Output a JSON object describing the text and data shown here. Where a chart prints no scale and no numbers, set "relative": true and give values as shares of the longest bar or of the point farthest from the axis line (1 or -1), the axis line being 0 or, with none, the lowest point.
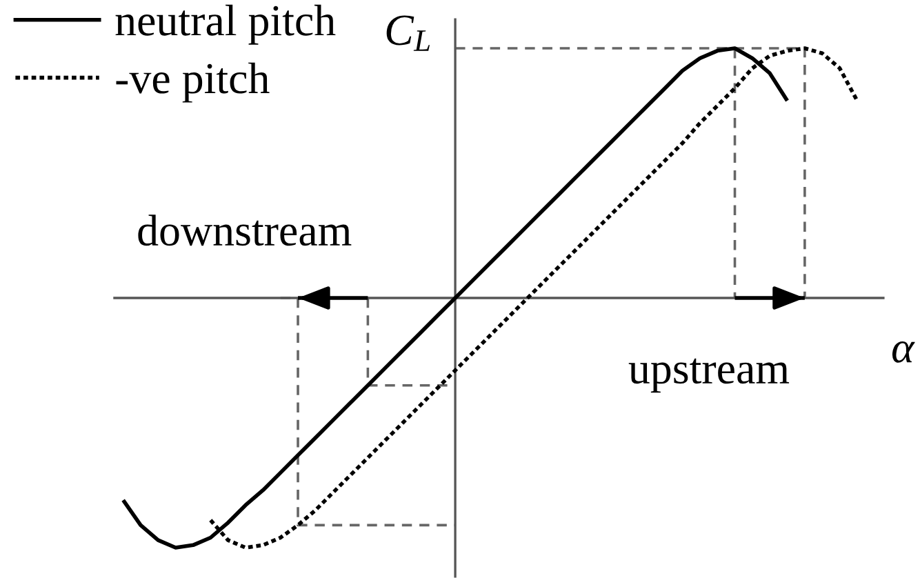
{
  "chart_data": {
    "type": "line",
    "relative": true,
    "xlabel": "α",
    "ylabel": "C$_{L}$",
    "legend": "top left",
    "categories": [
      null,
      null,
      null,
      null,
      null,
      null,
      null,
      null,
      null,
      null,
      null,
      null,
      null,
      null,
      null,
      null,
      null,
      null,
      null,
      null,
      null,
      null,
      null,
      null,
      null,
      null,
      null,
      null,
      null,
      null,
      null,
      null,
      null,
      null,
      null,
      null,
      null,
      null,
      null,
      null,
      null,
      null,
      null,
      null
    ],
    "series": [
      {
        "name": "neutral pitch",
        "color": "#000000",
        "line_style": "solid",
        "values": [
          -0.81,
          -0.91,
          -0.97,
          -1.0,
          -0.99,
          -0.96,
          -0.9,
          -0.83,
          -0.77,
          -0.7,
          -0.63,
          -0.56,
          -0.49,
          -0.42,
          -0.35,
          -0.28,
          -0.21,
          -0.14,
          -0.07,
          0,
          0.07,
          0.14,
          0.21,
          0.28,
          0.35,
          0.42,
          0.49,
          0.56,
          0.63,
          0.7,
          0.77,
          0.84,
          0.91,
          0.96,
          0.99,
          1.0,
          0.96,
          0.9,
          0.79,
          null,
          null,
          null,
          null,
          null
        ]
      },
      {
        "name": "-ve pitch",
        "color": "#000000",
        "line_style": "dotted",
        "values": [
          null,
          null,
          null,
          null,
          null,
          -0.89,
          -0.97,
          -1.0,
          -0.99,
          -0.96,
          -0.91,
          -0.85,
          -0.78,
          -0.71,
          -0.64,
          -0.57,
          -0.5,
          -0.43,
          -0.36,
          -0.29,
          -0.22,
          -0.15,
          -0.08,
          -0.01,
          0.06,
          0.13,
          0.2,
          0.27,
          0.34,
          0.41,
          0.48,
          0.55,
          0.62,
          0.7,
          0.77,
          0.84,
          0.92,
          0.97,
          0.99,
          1.0,
          0.98,
          0.92,
          0.79,
          null
        ]
      },
      {
        "type": "step",
        "color": "#666666",
        "line_style": "dashed",
        "values": [
          null,
          null,
          null,
          null,
          null,
          null,
          null,
          null,
          null,
          null,
          null,
          null,
          null,
          null,
          null,
          null,
          null,
          null,
          null,
          1.0,
          1.0,
          1.0,
          1.0,
          1.0,
          1.0,
          1.0,
          1.0,
          1.0,
          1.0,
          1.0,
          1.0,
          1.0,
          1.0,
          1.0,
          1.0,
          1.0,
          1.0,
          1.0,
          1.0,
          0,
          null,
          null,
          null,
          null
        ]
      },
      {
        "type": "step",
        "color": "#666666",
        "line_style": "dashed",
        "values": [
          null,
          null,
          null,
          null,
          null,
          null,
          null,
          null,
          null,
          null,
          null,
          null,
          null,
          null,
          null,
          null,
          null,
          null,
          null,
          null,
          null,
          null,
          null,
          null,
          null,
          null,
          null,
          null,
          null,
          null,
          null,
          null,
          null,
          null,
          1.0,
          0,
          null,
          null,
          null,
          null,
          null,
          null,
          null,
          null
        ]
      },
      {
        "type": "step",
        "color": "#666666",
        "line_style": "dashed",
        "values": [
          null,
          null,
          null,
          null,
          null,
          null,
          null,
          null,
          null,
          null,
          null,
          null,
          null,
          0,
          -0.35,
          -0.35,
          -0.35,
          -0.35,
          -0.35,
          -0.35,
          null,
          null,
          null,
          null,
          null,
          null,
          null,
          null,
          null,
          null,
          null,
          null,
          null,
          null,
          null,
          null,
          null,
          null,
          null,
          null,
          null,
          null,
          null,
          null
        ]
      },
      {
        "type": "step",
        "color": "#666666",
        "line_style": "dashed",
        "values": [
          null,
          null,
          null,
          null,
          null,
          null,
          null,
          null,
          null,
          0,
          -0.91,
          -0.91,
          -0.91,
          -0.91,
          -0.91,
          -0.91,
          -0.91,
          -0.91,
          -0.91,
          -0.91,
          null,
          null,
          null,
          null,
          null,
          null,
          null,
          null,
          null,
          null,
          null,
          null,
          null,
          null,
          null,
          null,
          null,
          null,
          null,
          null,
          null,
          null,
          null,
          null
        ]
      },
      {
        "color": "#000000",
        "line_style": "solid",
        "values": [
          null,
          null,
          null,
          null,
          null,
          null,
          null,
          null,
          null,
          null,
          0,
          0,
          0,
          0,
          0,
          null,
          null,
          null,
          null,
          null,
          null,
          null,
          null,
          null,
          null,
          null,
          null,
          null,
          null,
          null,
          null,
          null,
          null,
          null,
          null,
          null,
          null,
          null,
          null,
          null,
          null,
          null,
          null,
          null
        ]
      },
      {
        "color": "#000000",
        "line_style": "solid",
        "values": [
          null,
          null,
          null,
          null,
          null,
          null,
          null,
          null,
          null,
          null,
          null,
          null,
          null,
          null,
          null,
          null,
          null,
          null,
          null,
          null,
          null,
          null,
          null,
          null,
          null,
          null,
          null,
          null,
          null,
          null,
          null,
          null,
          null,
          null,
          null,
          0,
          0,
          0,
          0,
          0,
          null,
          null,
          null,
          null
        ]
      }
    ],
    "annotations": [
      "downstream",
      "upstream"
    ]
  }
}
